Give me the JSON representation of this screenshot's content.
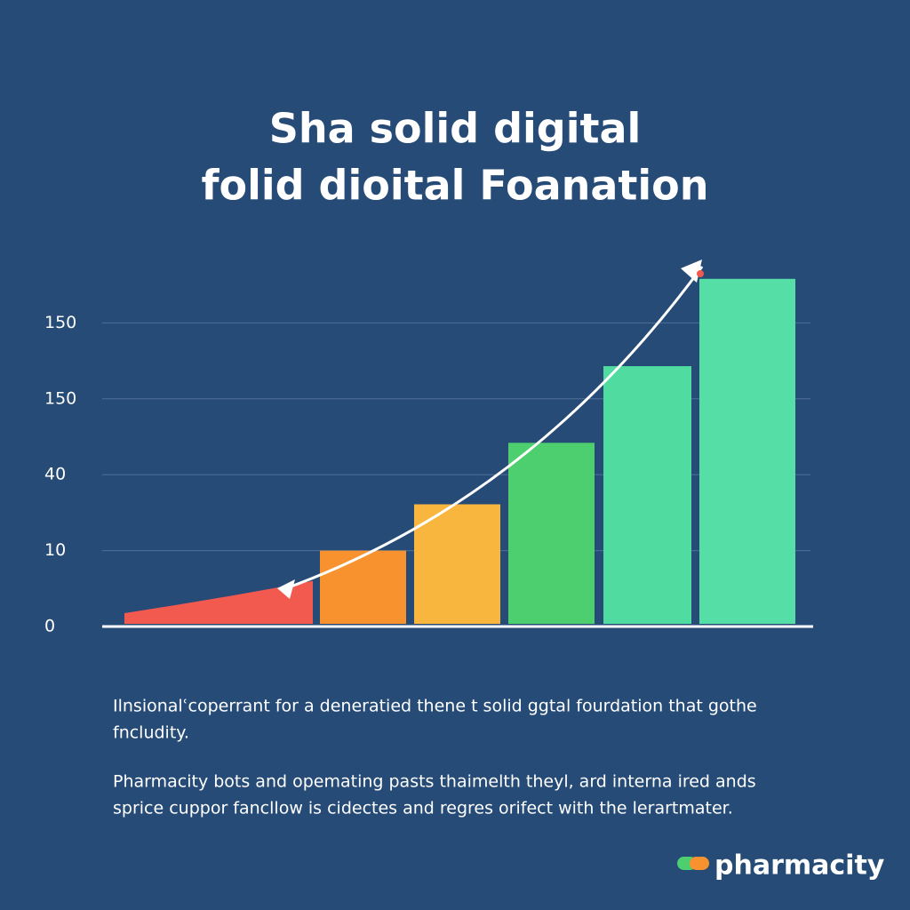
{
  "chart_data": {
    "type": "bar",
    "title": [
      "Sha solid digital",
      "folid dioital Foanation"
    ],
    "categories": [
      null,
      null,
      null,
      null,
      null,
      null
    ],
    "values": [
      0.6,
      1.0,
      1.61,
      2.42,
      3.43,
      4.58
    ],
    "colors": [
      "#f2594f",
      "#f7922f",
      "#f8b63e",
      "#4ecf6f",
      "#50dba0",
      "#55dea5"
    ],
    "ylim": [
      0,
      4.8
    ],
    "yticks": [
      {
        "value": 0,
        "label": "0"
      },
      {
        "value": 1,
        "label": "10"
      },
      {
        "value": 2,
        "label": "40"
      },
      {
        "value": 3,
        "label": "150"
      },
      {
        "value": 4,
        "label": "150"
      }
    ],
    "grid": true
  },
  "body": {
    "paragraphs": [
      [
        "Ilnsionalʿcoperrant for a deneratied thene t solid ggtal fourdation that gothe",
        "fncludity."
      ],
      [
        "Pharmacity bots and opemating pasts thaimelth theyl, ard interna ired ands",
        "sprice cuppor fancllow is cidectes and regres orifect with the lerartmater."
      ]
    ]
  },
  "logo": {
    "text": "pharmacity"
  }
}
